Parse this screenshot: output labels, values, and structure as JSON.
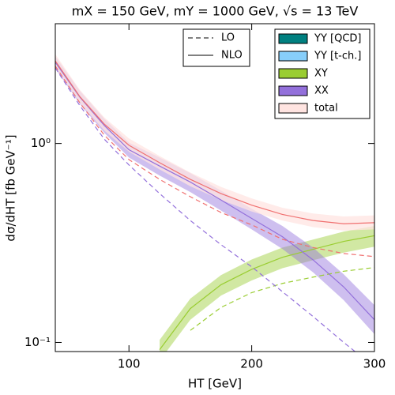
{
  "chart_data": {
    "type": "line",
    "title": "mX = 150 GeV, mY = 1000 GeV, √s = 13 TeV",
    "x_label": "HT [GeV]",
    "y_label": "dσ/dHT [fb GeV⁻¹]",
    "ylog": true,
    "xlim": [
      40,
      300
    ],
    "ylim": [
      0.09,
      4
    ],
    "xticks": [
      100,
      200,
      300
    ],
    "yticks": [
      {
        "value": 1,
        "label": "10⁰"
      },
      {
        "value": 0.1,
        "label": "10⁻¹"
      }
    ],
    "line_styles": [
      {
        "name": "LO",
        "dashed": true
      },
      {
        "name": "NLO",
        "dashed": false
      }
    ],
    "x": [
      40,
      60,
      80,
      100,
      125,
      150,
      175,
      200,
      225,
      250,
      275,
      300
    ],
    "series": [
      {
        "name": "YY [QCD]",
        "color": "#008080"
      },
      {
        "name": "YY [t-ch.]",
        "color": "#87cefa"
      },
      {
        "name": "XY",
        "color": "#9acd32",
        "nlo": [
          null,
          null,
          null,
          null,
          0.092,
          0.148,
          0.195,
          0.233,
          0.268,
          0.294,
          0.322,
          0.344
        ],
        "nlo_low": [
          null,
          null,
          null,
          null,
          0.081,
          0.13,
          0.172,
          0.205,
          0.236,
          0.259,
          0.283,
          0.303
        ],
        "nlo_high": [
          null,
          null,
          null,
          null,
          0.103,
          0.166,
          0.218,
          0.261,
          0.3,
          0.329,
          0.361,
          0.385
        ],
        "lo": [
          null,
          null,
          null,
          null,
          null,
          0.115,
          0.15,
          0.178,
          0.198,
          0.213,
          0.228,
          0.238
        ]
      },
      {
        "name": "XX",
        "color": "#9370db",
        "nlo": [
          2.56,
          1.71,
          1.23,
          0.93,
          0.77,
          0.64,
          0.52,
          0.42,
          0.34,
          0.26,
          0.19,
          0.13
        ],
        "nlo_low": [
          2.38,
          1.58,
          1.13,
          0.85,
          0.69,
          0.57,
          0.46,
          0.37,
          0.295,
          0.225,
          0.163,
          0.11
        ],
        "nlo_high": [
          2.74,
          1.84,
          1.33,
          1.01,
          0.85,
          0.71,
          0.58,
          0.47,
          0.385,
          0.3,
          0.22,
          0.154
        ],
        "lo": [
          2.4,
          1.55,
          1.05,
          0.78,
          0.56,
          0.41,
          0.31,
          0.24,
          0.18,
          0.135,
          0.1,
          0.075
        ]
      },
      {
        "name": "total",
        "color": "#ffe4e1",
        "line_color": "#f07070",
        "nlo": [
          2.6,
          1.72,
          1.25,
          0.98,
          0.8,
          0.66,
          0.56,
          0.49,
          0.44,
          0.41,
          0.395,
          0.4
        ],
        "nlo_low": [
          2.42,
          1.6,
          1.16,
          0.91,
          0.74,
          0.61,
          0.52,
          0.455,
          0.41,
          0.38,
          0.365,
          0.37
        ],
        "nlo_high": [
          2.81,
          1.86,
          1.35,
          1.06,
          0.865,
          0.715,
          0.605,
          0.53,
          0.475,
          0.445,
          0.43,
          0.435
        ],
        "lo": [
          2.45,
          1.6,
          1.1,
          0.83,
          0.66,
          0.54,
          0.45,
          0.39,
          0.33,
          0.3,
          0.28,
          0.27
        ]
      }
    ]
  }
}
